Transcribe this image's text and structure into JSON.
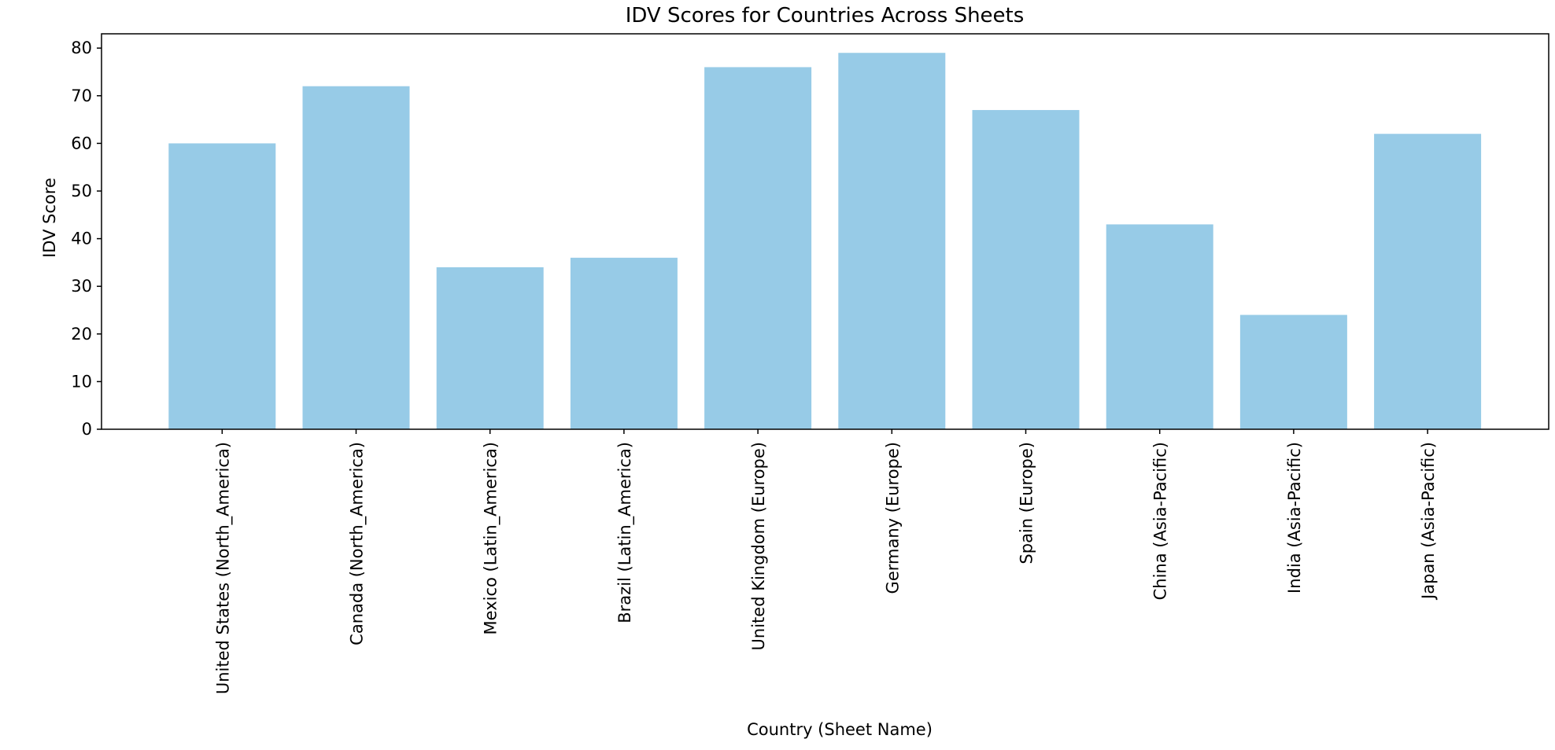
{
  "chart_data": {
    "type": "bar",
    "title": "IDV Scores for Countries Across Sheets",
    "xlabel": "Country (Sheet Name)",
    "ylabel": "IDV Score",
    "categories": [
      "United States (North_America)",
      "Canada (North_America)",
      "Mexico (Latin_America)",
      "Brazil (Latin_America)",
      "United Kingdom (Europe)",
      "Germany (Europe)",
      "Spain (Europe)",
      "China (Asia-Pacific)",
      "India (Asia-Pacific)",
      "Japan (Asia-Pacific)"
    ],
    "values": [
      60,
      72,
      34,
      36,
      76,
      79,
      67,
      43,
      24,
      62
    ],
    "ylim": [
      0,
      83
    ],
    "yticks": [
      0,
      10,
      20,
      30,
      40,
      50,
      60,
      70,
      80
    ],
    "grid": false,
    "bar_color": "#97cbe7"
  }
}
